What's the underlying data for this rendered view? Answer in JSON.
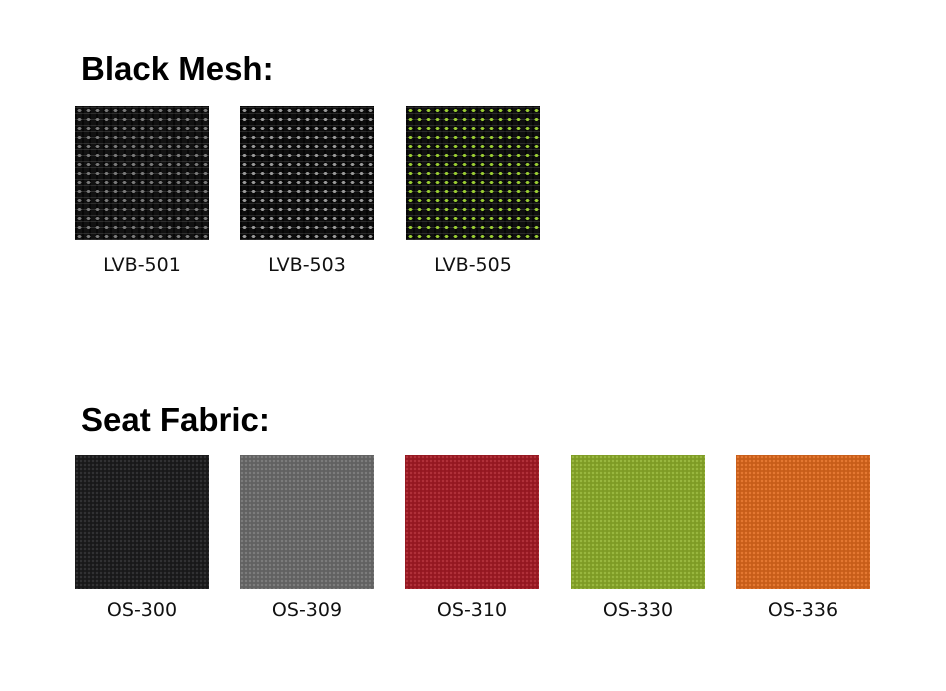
{
  "sections": [
    {
      "title": "Black Mesh:",
      "swatches": [
        {
          "code": "LVB-501",
          "base_color": "#111111",
          "accent_color": "#7a7a7a"
        },
        {
          "code": "LVB-503",
          "base_color": "#0c0c0c",
          "accent_color": "#9a9a9a"
        },
        {
          "code": "LVB-505",
          "base_color": "#0f0f0f",
          "accent_color": "#9acd32"
        }
      ]
    },
    {
      "title": "Seat Fabric:",
      "swatches": [
        {
          "code": "OS-300",
          "color": "#1b1b1d"
        },
        {
          "code": "OS-309",
          "color": "#6e6e6e"
        },
        {
          "code": "OS-310",
          "color": "#a81a24"
        },
        {
          "code": "OS-330",
          "color": "#8fb02a"
        },
        {
          "code": "OS-336",
          "color": "#e26a1c"
        }
      ]
    }
  ]
}
